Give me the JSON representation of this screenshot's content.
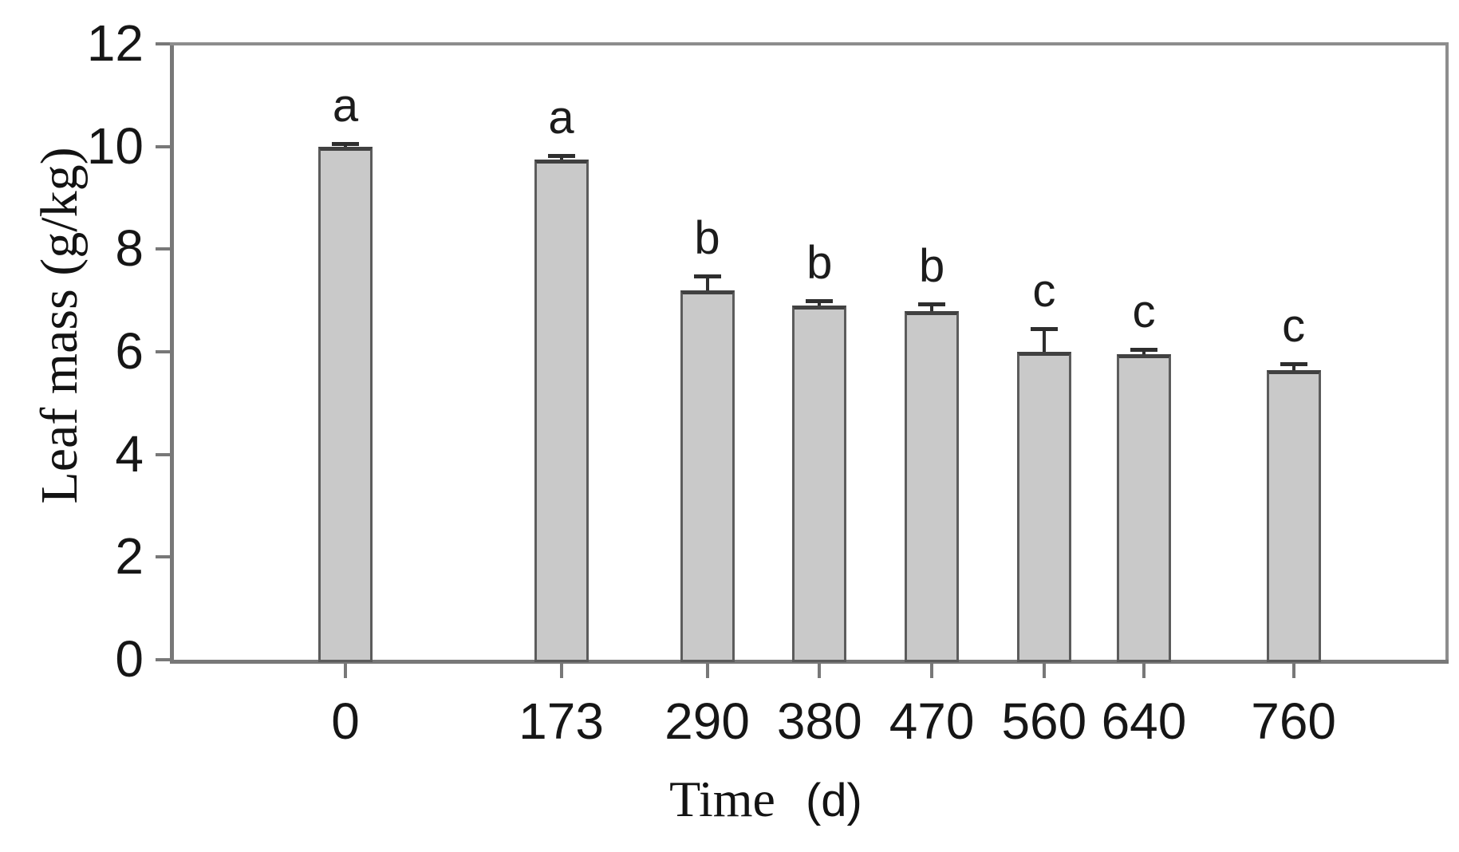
{
  "chart_data": {
    "type": "bar",
    "title": "",
    "ylabel": "Leaf mass (g/kg)",
    "xlabel_word": "Time",
    "xlabel_unit": "(d)",
    "categories": [
      0,
      173,
      290,
      380,
      470,
      560,
      640,
      760
    ],
    "values": [
      10.0,
      9.75,
      7.2,
      6.9,
      6.8,
      6.0,
      5.95,
      5.65
    ],
    "errors_plus": [
      0.05,
      0.08,
      0.27,
      0.1,
      0.13,
      0.45,
      0.1,
      0.12
    ],
    "sig_letters": [
      "a",
      "a",
      "b",
      "b",
      "b",
      "c",
      "c",
      "c"
    ],
    "y_ticks": [
      0,
      2,
      4,
      6,
      8,
      10,
      12
    ],
    "ylim": [
      0,
      12
    ],
    "xlim_days": [
      -137,
      882
    ],
    "x_axis": "linear in time (d), unevenly spaced category positions",
    "grid": "off",
    "legend": "none",
    "bar_color": "#c9c9c9",
    "bar_border_color": "#5c5c5c",
    "error_bar_color": "#2e2e2e",
    "axis_color": "#787878",
    "text_color": "#161616"
  }
}
